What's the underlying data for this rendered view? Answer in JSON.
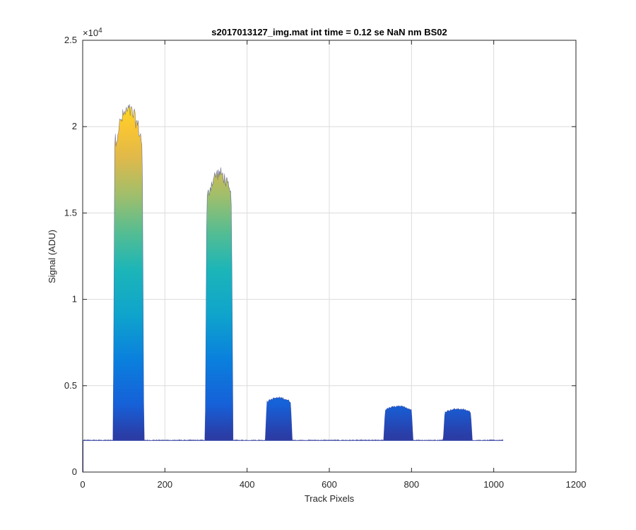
{
  "chart_data": {
    "type": "area",
    "title": "s2017013127_img.mat int time = 0.12 se  NaN nm BS02",
    "xlabel": "Track Pixels",
    "ylabel": "Signal (ADU)",
    "xlim": [
      0,
      1200
    ],
    "ylim": [
      0,
      25000
    ],
    "x_ticks": [
      0,
      200,
      400,
      600,
      800,
      1000,
      1200
    ],
    "x_tick_labels": [
      "0",
      "200",
      "400",
      "600",
      "800",
      "1000",
      "1200"
    ],
    "y_ticks": [
      0,
      5000,
      10000,
      15000,
      20000,
      25000
    ],
    "y_tick_labels": [
      "0",
      "0.5",
      "1",
      "1.5",
      "2",
      "2.5"
    ],
    "y_exponent_base": "×10",
    "y_exponent_power": "4",
    "grid": true,
    "colormap": "parula",
    "colors": {
      "low": "#352a87",
      "mid_blue": "#0f5cdd",
      "teal": "#12b2c3",
      "green": "#7fbf7b",
      "orange": "#f7bb3c",
      "yellow": "#f9e01e"
    },
    "baseline": 1850,
    "x_range": [
      0,
      1024
    ],
    "peaks": [
      {
        "start": 78,
        "end": 145,
        "top": 20900
      },
      {
        "start": 302,
        "end": 362,
        "top": 17300
      },
      {
        "start": 448,
        "end": 506,
        "top": 4300
      },
      {
        "start": 736,
        "end": 800,
        "top": 3800
      },
      {
        "start": 881,
        "end": 944,
        "top": 3650
      }
    ]
  }
}
